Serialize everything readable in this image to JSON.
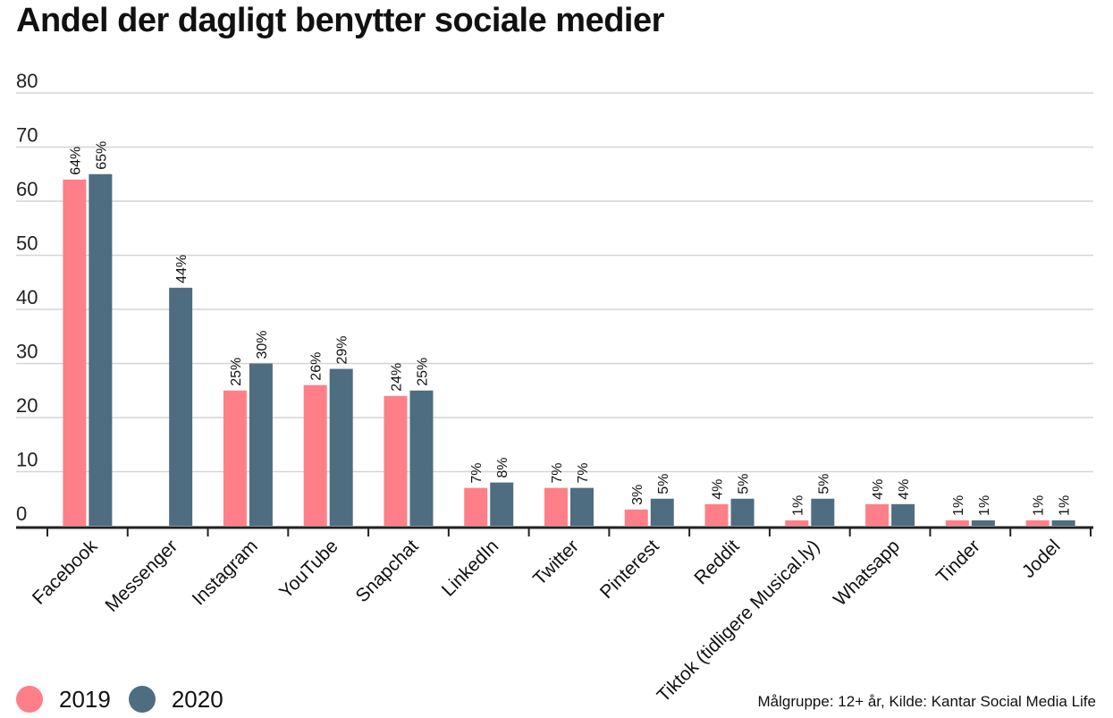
{
  "title": "Andel der dagligt benytter sociale medier",
  "source": "Målgruppe: 12+ år, Kilde: Kantar Social Media Life",
  "colors": {
    "2019": "#ff7f88",
    "2020": "#4f6d80"
  },
  "legend": [
    {
      "label": "2019",
      "color": "#ff7f88"
    },
    {
      "label": "2020",
      "color": "#4f6d80"
    }
  ],
  "chart_data": {
    "type": "bar",
    "title": "Andel der dagligt benytter sociale medier",
    "xlabel": "",
    "ylabel": "",
    "ylim": [
      0,
      80
    ],
    "yticks": [
      0,
      10,
      20,
      30,
      40,
      50,
      60,
      70,
      80
    ],
    "grid": true,
    "legend_position": "bottom-left",
    "categories": [
      "Facebook",
      "Messenger",
      "Instagram",
      "YouTube",
      "Snapchat",
      "LinkedIn",
      "Twitter",
      "Pinterest",
      "Reddit",
      "Tiktok (tidligere Musical.ly)",
      "Whatsapp",
      "Tinder",
      "Jodel"
    ],
    "series": [
      {
        "name": "2019",
        "color": "#ff7f88",
        "values": [
          64,
          null,
          25,
          26,
          24,
          7,
          7,
          3,
          4,
          1,
          4,
          1,
          1
        ],
        "labels": [
          "64%",
          "",
          "25%",
          "26%",
          "24%",
          "7%",
          "7%",
          "3%",
          "4%",
          "1%",
          "4%",
          "1%",
          "1%"
        ]
      },
      {
        "name": "2020",
        "color": "#4f6d80",
        "values": [
          65,
          44,
          30,
          29,
          25,
          8,
          7,
          5,
          5,
          5,
          4,
          1,
          1
        ],
        "labels": [
          "65%",
          "44%",
          "30%",
          "29%",
          "25%",
          "8%",
          "7%",
          "5%",
          "5%",
          "5%",
          "4%",
          "1%",
          "1%"
        ]
      }
    ]
  }
}
